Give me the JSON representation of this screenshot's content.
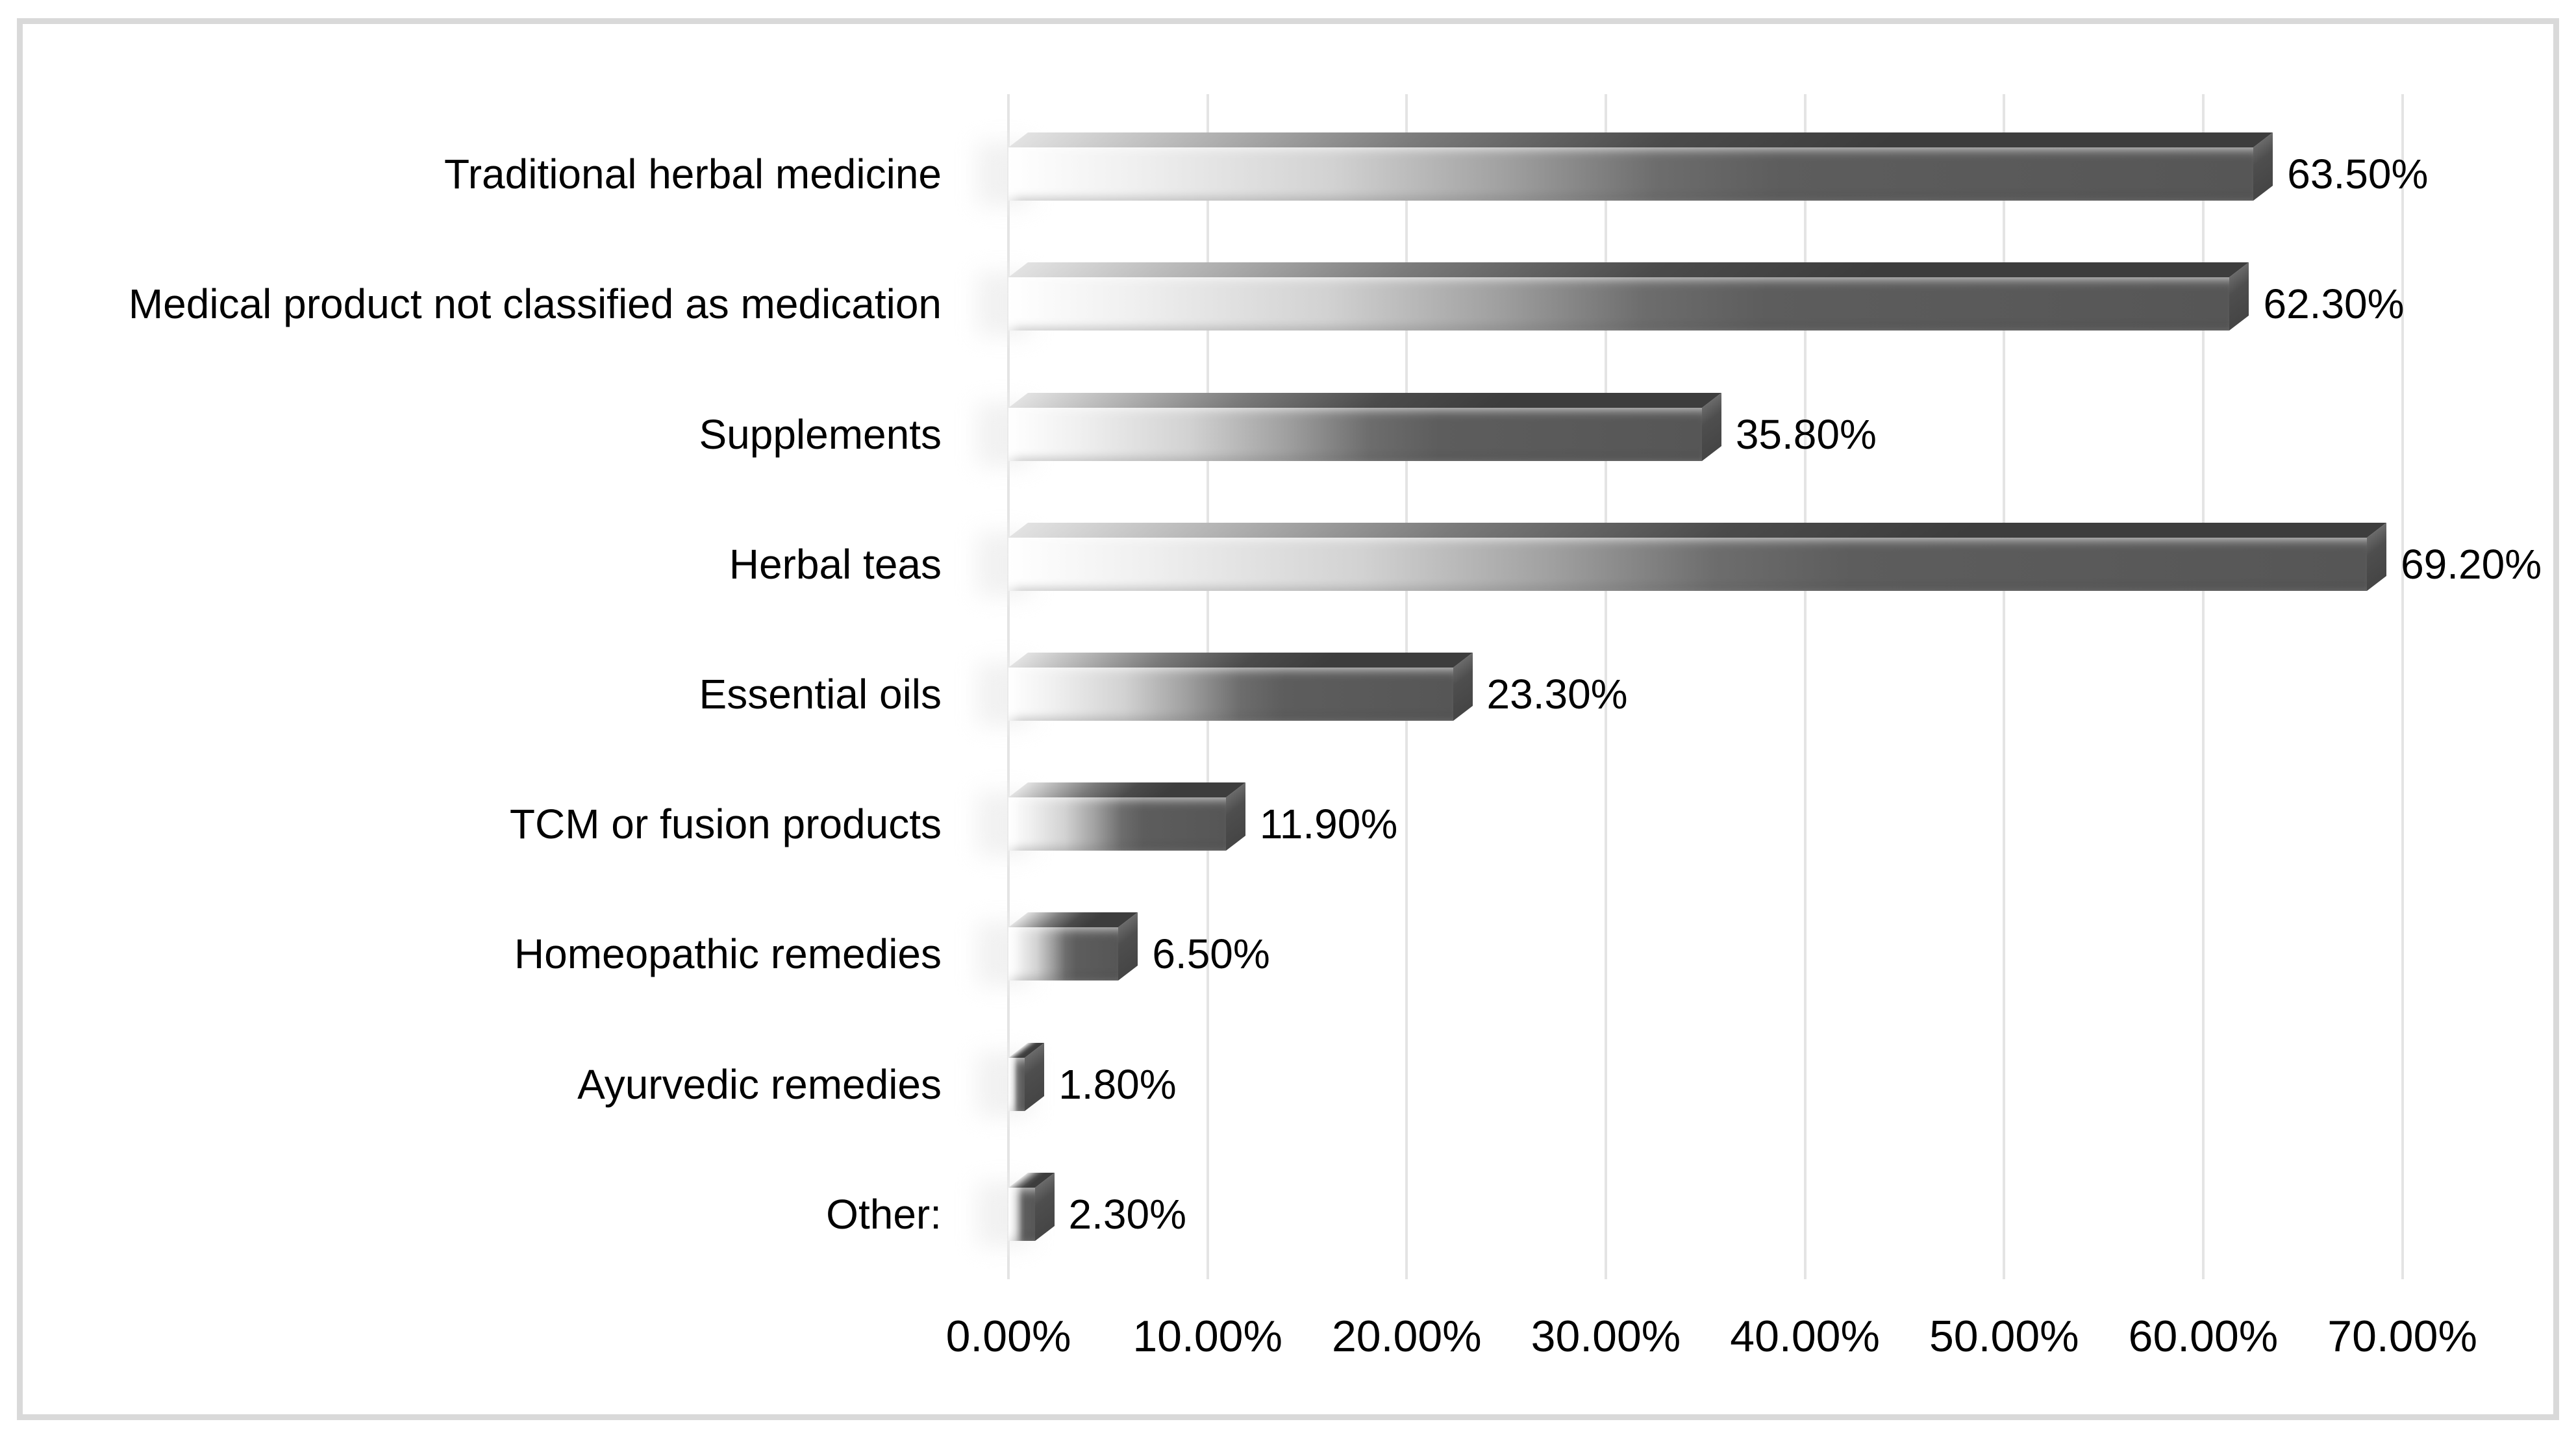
{
  "window": {
    "background": "#ffffff",
    "border_color": "#d9d9d9"
  },
  "chart_data": {
    "type": "bar",
    "orientation": "horizontal",
    "title": "",
    "xlabel": "",
    "ylabel": "",
    "categories": [
      "Traditional herbal medicine",
      "Medical product not classified as medication",
      "Supplements",
      "Herbal teas",
      "Essential oils",
      "TCM or fusion products",
      "Homeopathic remedies",
      "Ayurvedic remedies",
      "Other:"
    ],
    "values": [
      63.5,
      62.3,
      35.8,
      69.2,
      23.3,
      11.9,
      6.5,
      1.8,
      2.3
    ],
    "value_labels": [
      "63.50%",
      "62.30%",
      "35.80%",
      "69.20%",
      "23.30%",
      "11.90%",
      "6.50%",
      "1.80%",
      "2.30%"
    ],
    "xlim": [
      0,
      70
    ],
    "x_ticks": [
      {
        "value": 0,
        "label": "0.00%"
      },
      {
        "value": 10,
        "label": "10.00%"
      },
      {
        "value": 20,
        "label": "20.00%"
      },
      {
        "value": 30,
        "label": "30.00%"
      },
      {
        "value": 40,
        "label": "40.00%"
      },
      {
        "value": 50,
        "label": "50.00%"
      },
      {
        "value": 60,
        "label": "60.00%"
      },
      {
        "value": 70,
        "label": "70.00%"
      }
    ],
    "grid": "vertical-only",
    "legend": "none",
    "bar_style": "3d-box-gradient",
    "colors": {
      "face_gradient_start": "#ffffff",
      "face_gradient_end": "#565656",
      "top_face_dark": "#3d3d3d",
      "end_cap": "#4e4e4e",
      "gridline": "#e4e4e4",
      "text": "#000000"
    }
  }
}
